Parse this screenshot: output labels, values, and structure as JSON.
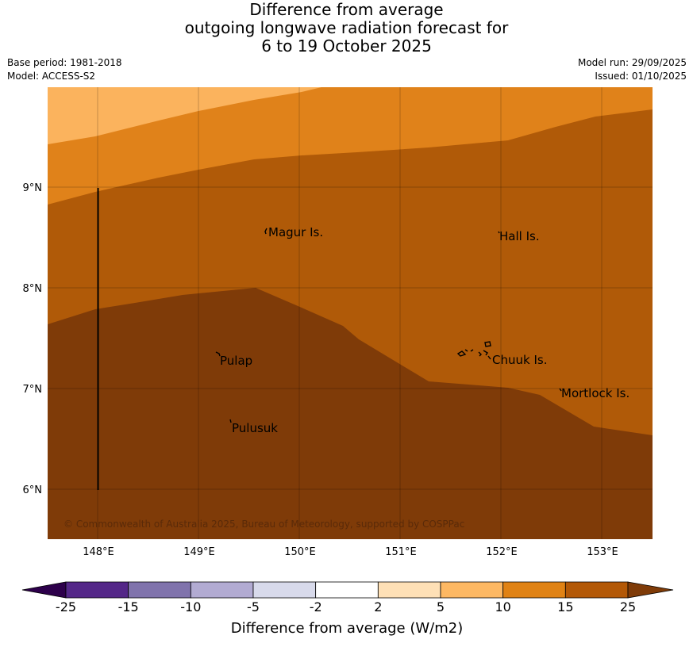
{
  "title": {
    "line1": "Difference from average",
    "line2": "outgoing longwave radiation forecast for",
    "line3": "6 to 19 October 2025"
  },
  "meta": {
    "base_period": "Base period: 1981-2018",
    "model": "Model: ACCESS-S2",
    "model_run": "Model run: 29/09/2025",
    "issued": "Issued: 01/10/2025"
  },
  "map": {
    "lon_labels": [
      "148°E",
      "149°E",
      "150°E",
      "151°E",
      "152°E",
      "153°E"
    ],
    "lat_labels": [
      "9°N",
      "8°N",
      "7°N",
      "6°N"
    ],
    "places": [
      "Magur Is.",
      "Hall Is.",
      "Pulap",
      "Chuuk Is.",
      "Mortlock Is.",
      "Pulusuk"
    ],
    "credit": "© Commonwealth of Australia 2025, Bureau of Meteorology, supported by COSPPac",
    "zone_colors": {
      "band_5_10": "#fbb35d",
      "band_10_15": "#e0821a",
      "band_15_25": "#b05a08",
      "band_over_25": "#7f3b08"
    }
  },
  "colorbar": {
    "tick_labels": [
      "-25",
      "-15",
      "-10",
      "-5",
      "-2",
      "2",
      "5",
      "10",
      "15",
      "25"
    ],
    "colors": [
      "#2d004b",
      "#542788",
      "#8073ac",
      "#b2abd2",
      "#d8daeb",
      "#ffffff",
      "#fee0b6",
      "#fdb863",
      "#e08214",
      "#b35806",
      "#7f3b08"
    ],
    "label": "Difference from average (W/m2)"
  }
}
